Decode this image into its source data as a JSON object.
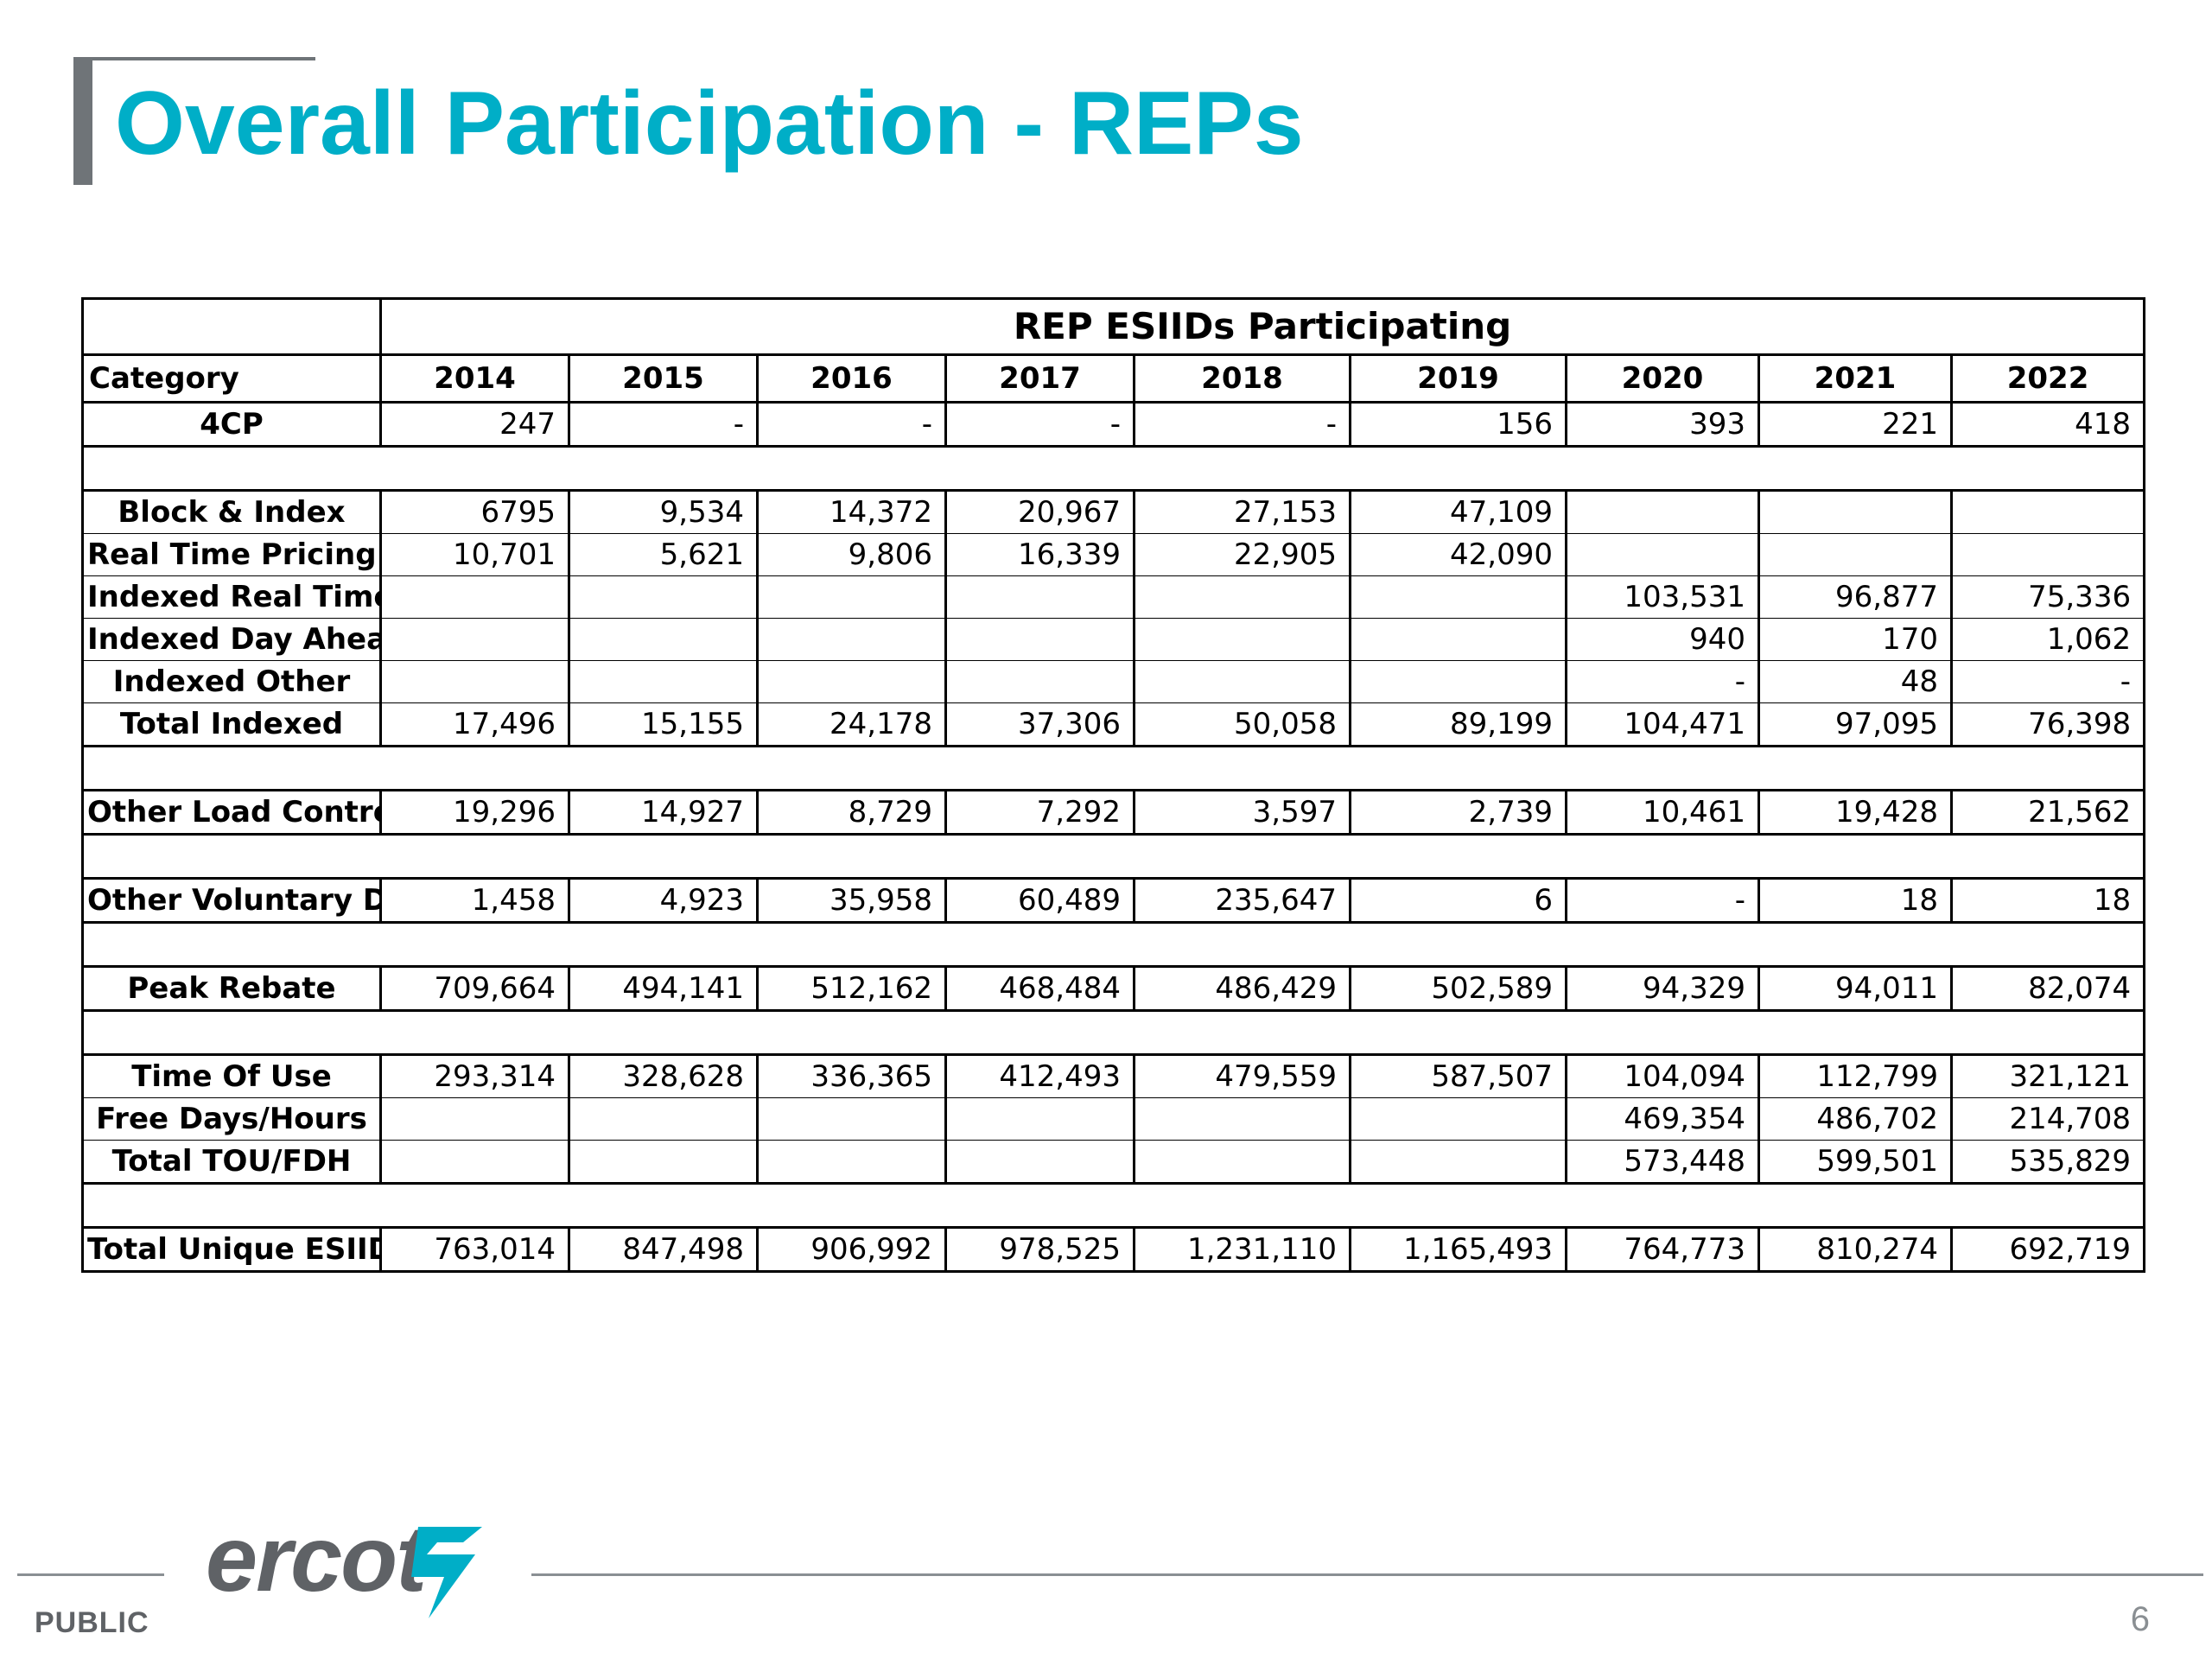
{
  "slide": {
    "title": "Overall Participation - REPs",
    "footer_label": "PUBLIC",
    "page_number": "6",
    "logo_text": "ercot",
    "brand_color": "#00AEC7",
    "logo_mark_color": "#00AEC7"
  },
  "table": {
    "group_header": "REP ESIIDs Participating",
    "category_header": "Category",
    "years": [
      "2014",
      "2015",
      "2016",
      "2017",
      "2018",
      "2019",
      "2020",
      "2021",
      "2022"
    ],
    "rows": [
      {
        "category": "4CP",
        "values": [
          "247",
          "-",
          "-",
          "-",
          "-",
          "156",
          "393",
          "221",
          "418"
        ]
      },
      {
        "spacer": true
      },
      {
        "category": "Block & Index",
        "values": [
          "6795",
          "9,534",
          "14,372",
          "20,967",
          "27,153",
          "47,109",
          "",
          "",
          ""
        ]
      },
      {
        "category": "Real Time Pricing",
        "values": [
          "10,701",
          "5,621",
          "9,806",
          "16,339",
          "22,905",
          "42,090",
          "",
          "",
          ""
        ]
      },
      {
        "category": "Indexed Real Time",
        "values": [
          "",
          "",
          "",
          "",
          "",
          "",
          "103,531",
          "96,877",
          "75,336"
        ]
      },
      {
        "category": "Indexed Day Ahead",
        "values": [
          "",
          "",
          "",
          "",
          "",
          "",
          "940",
          "170",
          "1,062"
        ]
      },
      {
        "category": "Indexed Other",
        "values": [
          "",
          "",
          "",
          "",
          "",
          "",
          "-",
          "48",
          "-"
        ]
      },
      {
        "category": "Total Indexed",
        "values": [
          "17,496",
          "15,155",
          "24,178",
          "37,306",
          "50,058",
          "89,199",
          "104,471",
          "97,095",
          "76,398"
        ]
      },
      {
        "spacer": true
      },
      {
        "category": "Other Load Control",
        "values": [
          "19,296",
          "14,927",
          "8,729",
          "7,292",
          "3,597",
          "2,739",
          "10,461",
          "19,428",
          "21,562"
        ]
      },
      {
        "spacer": true
      },
      {
        "category": "Other Voluntary DR",
        "values": [
          "1,458",
          "4,923",
          "35,958",
          "60,489",
          "235,647",
          "6",
          "-",
          "18",
          "18"
        ]
      },
      {
        "spacer": true
      },
      {
        "category": "Peak Rebate",
        "values": [
          "709,664",
          "494,141",
          "512,162",
          "468,484",
          "486,429",
          "502,589",
          "94,329",
          "94,011",
          "82,074"
        ]
      },
      {
        "spacer": true
      },
      {
        "category": "Time Of Use",
        "values": [
          "293,314",
          "328,628",
          "336,365",
          "412,493",
          "479,559",
          "587,507",
          "104,094",
          "112,799",
          "321,121"
        ]
      },
      {
        "category": "Free Days/Hours",
        "values": [
          "",
          "",
          "",
          "",
          "",
          "",
          "469,354",
          "486,702",
          "214,708"
        ]
      },
      {
        "category": "Total TOU/FDH",
        "values": [
          "",
          "",
          "",
          "",
          "",
          "",
          "573,448",
          "599,501",
          "535,829"
        ]
      },
      {
        "spacer": true
      },
      {
        "category": "Total Unique ESIIDs",
        "values": [
          "763,014",
          "847,498",
          "906,992",
          "978,525",
          "1,231,110",
          "1,165,493",
          "764,773",
          "810,274",
          "692,719"
        ]
      }
    ]
  }
}
